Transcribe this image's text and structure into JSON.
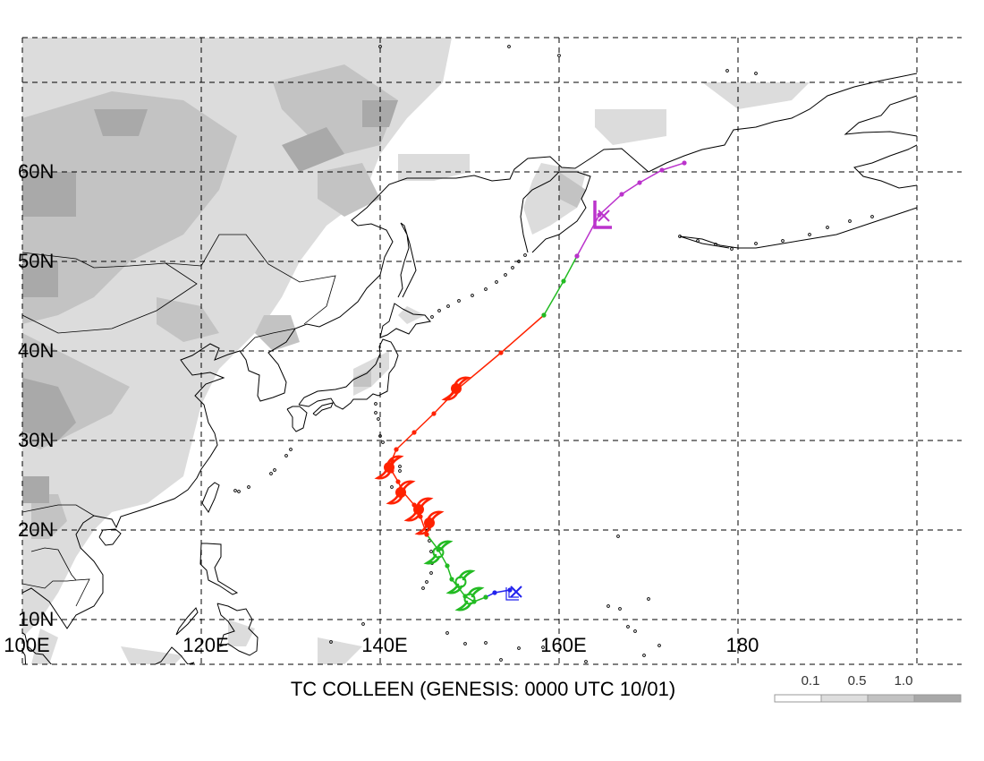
{
  "title": "TC COLLEEN (GENESIS: 0000 UTC 10/01)",
  "lon_labels": [
    "100E",
    "120E",
    "140E",
    "160E",
    "180"
  ],
  "lat_labels": [
    "10N",
    "20N",
    "30N",
    "40N",
    "50N",
    "60N"
  ],
  "map_extent": {
    "lon": [
      100,
      205
    ],
    "lat": [
      5,
      75
    ]
  },
  "legend": {
    "ticks": [
      "0.1",
      "0.5",
      "1.0"
    ],
    "colors": [
      "#ffffff",
      "#dedede",
      "#c2c2c2",
      "#a8a8a8"
    ]
  },
  "terrain_colors": {
    "light": "#dcdcdc",
    "mid": "#c3c3c3",
    "dark": "#a9a9a9"
  },
  "track": {
    "segments": [
      {
        "color": "#2222ee",
        "points": [
          [
            154.5,
            13.3
          ],
          [
            152.8,
            13.0
          ],
          [
            151.8,
            12.5
          ]
        ]
      },
      {
        "color": "#22bb22",
        "points": [
          [
            151.8,
            12.5
          ],
          [
            150.5,
            12.0
          ],
          [
            149.5,
            12.6
          ],
          [
            148.0,
            14.5
          ],
          [
            147.5,
            16.0
          ],
          [
            146.5,
            17.8
          ],
          [
            145.2,
            19.5
          ]
        ]
      },
      {
        "color": "#ff2200",
        "points": [
          [
            145.2,
            19.5
          ],
          [
            144.5,
            21.5
          ],
          [
            143.8,
            22.8
          ],
          [
            142.6,
            24.2
          ],
          [
            142.0,
            25.4
          ],
          [
            141.3,
            26.6
          ],
          [
            141.3,
            27.8
          ],
          [
            141.8,
            29.0
          ],
          [
            143.8,
            30.9
          ],
          [
            146.0,
            33.0
          ],
          [
            148.7,
            35.8
          ],
          [
            153.5,
            39.8
          ],
          [
            158.3,
            44.0
          ]
        ]
      },
      {
        "color": "#22bb22",
        "points": [
          [
            158.3,
            44.0
          ],
          [
            160.5,
            47.8
          ],
          [
            162.0,
            50.6
          ]
        ]
      },
      {
        "color": "#bb33cc",
        "points": [
          [
            162.0,
            50.6
          ],
          [
            164.5,
            55.2
          ],
          [
            167.0,
            57.5
          ],
          [
            169.0,
            58.8
          ],
          [
            171.5,
            60.2
          ],
          [
            174.0,
            61.0
          ]
        ]
      }
    ],
    "storm_symbols": [
      {
        "lon": 150.0,
        "lat": 12.3,
        "color": "#22bb22",
        "kind": "ts"
      },
      {
        "lon": 149.0,
        "lat": 14.2,
        "color": "#22bb22",
        "kind": "ts"
      },
      {
        "lon": 146.5,
        "lat": 17.5,
        "color": "#22bb22",
        "kind": "ts"
      },
      {
        "lon": 145.5,
        "lat": 20.8,
        "color": "#ff2200",
        "kind": "ty"
      },
      {
        "lon": 144.3,
        "lat": 22.3,
        "color": "#ff2200",
        "kind": "ty"
      },
      {
        "lon": 142.3,
        "lat": 24.2,
        "color": "#ff2200",
        "kind": "ty"
      },
      {
        "lon": 141.0,
        "lat": 27.0,
        "color": "#ff2200",
        "kind": "ty"
      },
      {
        "lon": 148.5,
        "lat": 35.8,
        "color": "#ff2200",
        "kind": "ty"
      }
    ],
    "genesis": {
      "lon": 154.2,
      "lat": 13.0,
      "color": "#2222ee"
    },
    "extratropical": {
      "lon": 164.5,
      "lat": 55.0,
      "color": "#bb33cc"
    }
  }
}
